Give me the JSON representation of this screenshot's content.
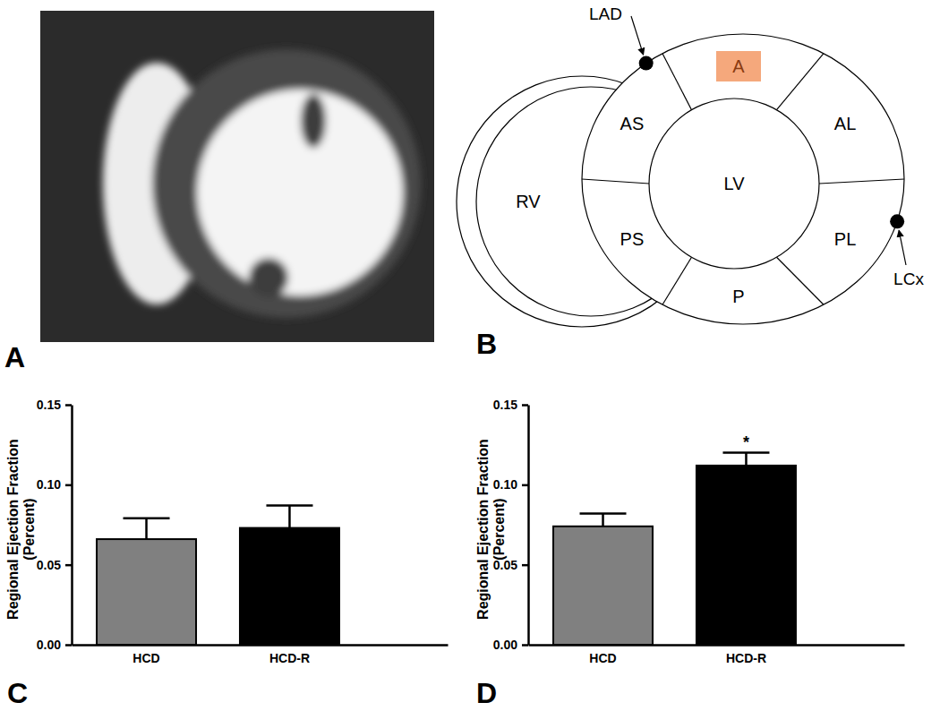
{
  "panel_labels": [
    "A",
    "B",
    "C",
    "D"
  ],
  "diagram": {
    "chambers": [
      "RV",
      "LV"
    ],
    "segments": [
      {
        "label": "A",
        "highlighted": true
      },
      {
        "label": "AL",
        "highlighted": false
      },
      {
        "label": "PL",
        "highlighted": false
      },
      {
        "label": "P",
        "highlighted": false
      },
      {
        "label": "PS",
        "highlighted": false
      },
      {
        "label": "AS",
        "highlighted": false
      }
    ],
    "arteries": [
      "LAD",
      "LCx"
    ]
  },
  "chart_data": [
    {
      "type": "bar",
      "categories": [
        "HCD",
        "HCD-R"
      ],
      "values": [
        0.066,
        0.073
      ],
      "errors": [
        0.013,
        0.014
      ],
      "colors": [
        "#808080",
        "#000000"
      ],
      "ylim": [
        0,
        0.15
      ],
      "yticks": [
        {
          "value": 0,
          "label": "0.00"
        },
        {
          "value": 0.05,
          "label": "0.05"
        },
        {
          "value": 0.1,
          "label": "0.10"
        },
        {
          "value": 0.15,
          "label": "0.15"
        }
      ],
      "y_label": [
        "Regional Ejection Fraction",
        "(Percent)"
      ]
    },
    {
      "type": "bar",
      "categories": [
        "HCD",
        "HCD-R"
      ],
      "values": [
        0.074,
        0.112
      ],
      "errors": [
        0.008,
        0.008
      ],
      "colors": [
        "#808080",
        "#000000"
      ],
      "ylim": [
        0,
        0.15
      ],
      "yticks": [
        {
          "value": 0,
          "label": "0.00"
        },
        {
          "value": 0.05,
          "label": "0.05"
        },
        {
          "value": 0.1,
          "label": "0.10"
        },
        {
          "value": 0.15,
          "label": "0.15"
        }
      ],
      "y_label": [
        "Regional Ejection Fraction",
        "(Percent)"
      ],
      "annotations": [
        {
          "text": "*",
          "category": "HCD-R"
        }
      ]
    }
  ]
}
